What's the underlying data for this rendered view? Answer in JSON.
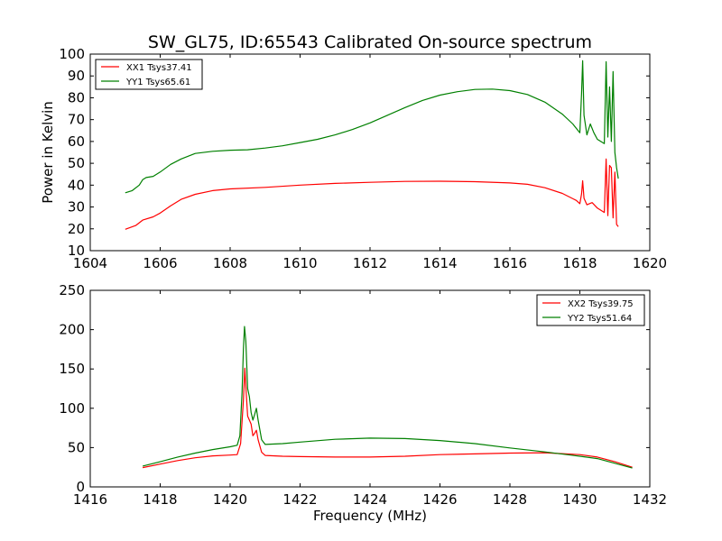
{
  "chart_data": [
    {
      "type": "line",
      "title": "SW_GL75, ID:65543 Calibrated On-source spectrum",
      "xlabel": "",
      "ylabel": "Power in Kelvin",
      "xlim": [
        1604,
        1620
      ],
      "ylim": [
        10,
        100
      ],
      "xticks": [
        "1604",
        "1606",
        "1608",
        "1610",
        "1612",
        "1614",
        "1616",
        "1618",
        "1620"
      ],
      "yticks": [
        "10",
        "20",
        "30",
        "40",
        "50",
        "60",
        "70",
        "80",
        "90",
        "100"
      ],
      "legend_position": "top-left",
      "grid": false,
      "series": [
        {
          "name": "XX1 Tsys37.41",
          "color": "#ff0000",
          "points": [
            [
              1605.0,
              19.8
            ],
            [
              1605.3,
              21.5
            ],
            [
              1605.5,
              24.0
            ],
            [
              1605.8,
              25.5
            ],
            [
              1606.0,
              27.2
            ],
            [
              1606.3,
              30.5
            ],
            [
              1606.6,
              33.5
            ],
            [
              1607.0,
              35.8
            ],
            [
              1607.5,
              37.5
            ],
            [
              1608.0,
              38.3
            ],
            [
              1609.0,
              39.0
            ],
            [
              1610.0,
              40.0
            ],
            [
              1611.0,
              40.8
            ],
            [
              1612.0,
              41.3
            ],
            [
              1613.0,
              41.7
            ],
            [
              1614.0,
              41.8
            ],
            [
              1615.0,
              41.6
            ],
            [
              1616.0,
              41.0
            ],
            [
              1616.5,
              40.4
            ],
            [
              1617.0,
              38.8
            ],
            [
              1617.5,
              36.2
            ],
            [
              1617.9,
              33.0
            ],
            [
              1618.0,
              31.5
            ],
            [
              1618.05,
              36.0
            ],
            [
              1618.08,
              42.0
            ],
            [
              1618.12,
              34.0
            ],
            [
              1618.2,
              31.0
            ],
            [
              1618.35,
              32.0
            ],
            [
              1618.5,
              29.5
            ],
            [
              1618.7,
              27.5
            ],
            [
              1618.75,
              52.0
            ],
            [
              1618.8,
              26.0
            ],
            [
              1618.85,
              49.0
            ],
            [
              1618.9,
              48.0
            ],
            [
              1618.95,
              25.0
            ],
            [
              1619.0,
              46.0
            ],
            [
              1619.05,
              22.0
            ],
            [
              1619.1,
              21.0
            ]
          ]
        },
        {
          "name": "YY1 Tsys65.61",
          "color": "#008000",
          "points": [
            [
              1605.0,
              36.5
            ],
            [
              1605.2,
              37.5
            ],
            [
              1605.4,
              40.0
            ],
            [
              1605.5,
              42.5
            ],
            [
              1605.6,
              43.5
            ],
            [
              1605.8,
              44.0
            ],
            [
              1606.0,
              46.0
            ],
            [
              1606.3,
              49.5
            ],
            [
              1606.6,
              52.0
            ],
            [
              1607.0,
              54.5
            ],
            [
              1607.5,
              55.5
            ],
            [
              1608.0,
              56.0
            ],
            [
              1608.5,
              56.2
            ],
            [
              1609.0,
              57.0
            ],
            [
              1609.5,
              58.0
            ],
            [
              1610.0,
              59.5
            ],
            [
              1610.5,
              61.0
            ],
            [
              1611.0,
              63.0
            ],
            [
              1611.5,
              65.5
            ],
            [
              1612.0,
              68.5
            ],
            [
              1612.5,
              72.0
            ],
            [
              1613.0,
              75.5
            ],
            [
              1613.5,
              78.8
            ],
            [
              1614.0,
              81.2
            ],
            [
              1614.5,
              82.8
            ],
            [
              1615.0,
              83.8
            ],
            [
              1615.5,
              84.0
            ],
            [
              1616.0,
              83.3
            ],
            [
              1616.5,
              81.5
            ],
            [
              1617.0,
              78.0
            ],
            [
              1617.5,
              72.5
            ],
            [
              1617.8,
              68.0
            ],
            [
              1618.0,
              64.0
            ],
            [
              1618.05,
              82.0
            ],
            [
              1618.08,
              97.0
            ],
            [
              1618.12,
              72.0
            ],
            [
              1618.2,
              63.0
            ],
            [
              1618.3,
              68.0
            ],
            [
              1618.4,
              64.0
            ],
            [
              1618.5,
              61.0
            ],
            [
              1618.7,
              59.0
            ],
            [
              1618.75,
              96.5
            ],
            [
              1618.8,
              62.0
            ],
            [
              1618.85,
              85.0
            ],
            [
              1618.9,
              60.0
            ],
            [
              1618.95,
              92.0
            ],
            [
              1619.0,
              55.0
            ],
            [
              1619.05,
              48.0
            ],
            [
              1619.1,
              43.0
            ]
          ]
        }
      ]
    },
    {
      "type": "line",
      "title": "",
      "xlabel": "Frequency (MHz)",
      "ylabel": "",
      "xlim": [
        1416,
        1432
      ],
      "ylim": [
        0,
        250
      ],
      "xticks": [
        "1416",
        "1418",
        "1420",
        "1422",
        "1424",
        "1426",
        "1428",
        "1430",
        "1432"
      ],
      "yticks": [
        "0",
        "50",
        "100",
        "150",
        "200",
        "250"
      ],
      "legend_position": "top-right",
      "grid": false,
      "series": [
        {
          "name": "XX2 Tsys39.75",
          "color": "#ff0000",
          "points": [
            [
              1417.5,
              24.5
            ],
            [
              1418.0,
              29.0
            ],
            [
              1418.5,
              33.5
            ],
            [
              1419.0,
              37.0
            ],
            [
              1419.5,
              39.5
            ],
            [
              1420.0,
              40.5
            ],
            [
              1420.2,
              41.0
            ],
            [
              1420.3,
              55.0
            ],
            [
              1420.38,
              110.0
            ],
            [
              1420.42,
              151.0
            ],
            [
              1420.46,
              120.0
            ],
            [
              1420.5,
              90.0
            ],
            [
              1420.55,
              85.0
            ],
            [
              1420.6,
              80.0
            ],
            [
              1420.65,
              65.0
            ],
            [
              1420.7,
              68.0
            ],
            [
              1420.75,
              72.0
            ],
            [
              1420.8,
              60.0
            ],
            [
              1420.9,
              44.0
            ],
            [
              1421.0,
              40.0
            ],
            [
              1421.5,
              39.0
            ],
            [
              1422.0,
              38.5
            ],
            [
              1423.0,
              38.0
            ],
            [
              1424.0,
              38.0
            ],
            [
              1425.0,
              39.0
            ],
            [
              1426.0,
              41.0
            ],
            [
              1427.0,
              42.0
            ],
            [
              1428.0,
              43.0
            ],
            [
              1429.0,
              43.5
            ],
            [
              1430.0,
              41.0
            ],
            [
              1430.5,
              38.0
            ],
            [
              1431.0,
              32.0
            ],
            [
              1431.5,
              25.0
            ]
          ]
        },
        {
          "name": "YY2 Tsys51.64",
          "color": "#008000",
          "points": [
            [
              1417.5,
              26.5
            ],
            [
              1418.0,
              32.0
            ],
            [
              1418.5,
              38.0
            ],
            [
              1419.0,
              43.0
            ],
            [
              1419.5,
              47.5
            ],
            [
              1420.0,
              51.0
            ],
            [
              1420.2,
              53.0
            ],
            [
              1420.28,
              65.0
            ],
            [
              1420.34,
              120.0
            ],
            [
              1420.38,
              175.0
            ],
            [
              1420.41,
              204.0
            ],
            [
              1420.45,
              185.0
            ],
            [
              1420.5,
              125.0
            ],
            [
              1420.55,
              115.0
            ],
            [
              1420.6,
              95.0
            ],
            [
              1420.65,
              85.0
            ],
            [
              1420.7,
              92.0
            ],
            [
              1420.75,
              100.0
            ],
            [
              1420.8,
              85.0
            ],
            [
              1420.9,
              60.0
            ],
            [
              1421.0,
              54.0
            ],
            [
              1421.5,
              55.0
            ],
            [
              1422.0,
              57.0
            ],
            [
              1423.0,
              60.5
            ],
            [
              1424.0,
              62.0
            ],
            [
              1425.0,
              61.5
            ],
            [
              1426.0,
              59.0
            ],
            [
              1427.0,
              55.0
            ],
            [
              1428.0,
              49.5
            ],
            [
              1429.0,
              44.5
            ],
            [
              1430.0,
              39.0
            ],
            [
              1430.5,
              36.0
            ],
            [
              1431.0,
              30.0
            ],
            [
              1431.5,
              24.0
            ]
          ]
        }
      ]
    }
  ]
}
